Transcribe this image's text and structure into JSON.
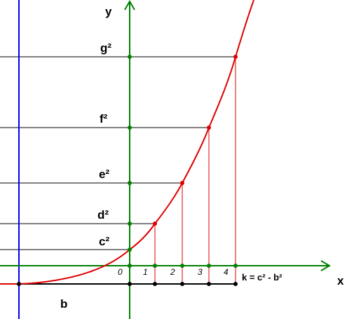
{
  "axes": {
    "x": "x",
    "y": "y"
  },
  "levels": [
    {
      "label": "g²"
    },
    {
      "label": "f²"
    },
    {
      "label": "e²"
    },
    {
      "label": "d²"
    },
    {
      "label": "c²"
    }
  ],
  "ticks": [
    "0",
    "1",
    "2",
    "3",
    "4"
  ],
  "formula": "k = c² - b²",
  "segment": "b"
}
